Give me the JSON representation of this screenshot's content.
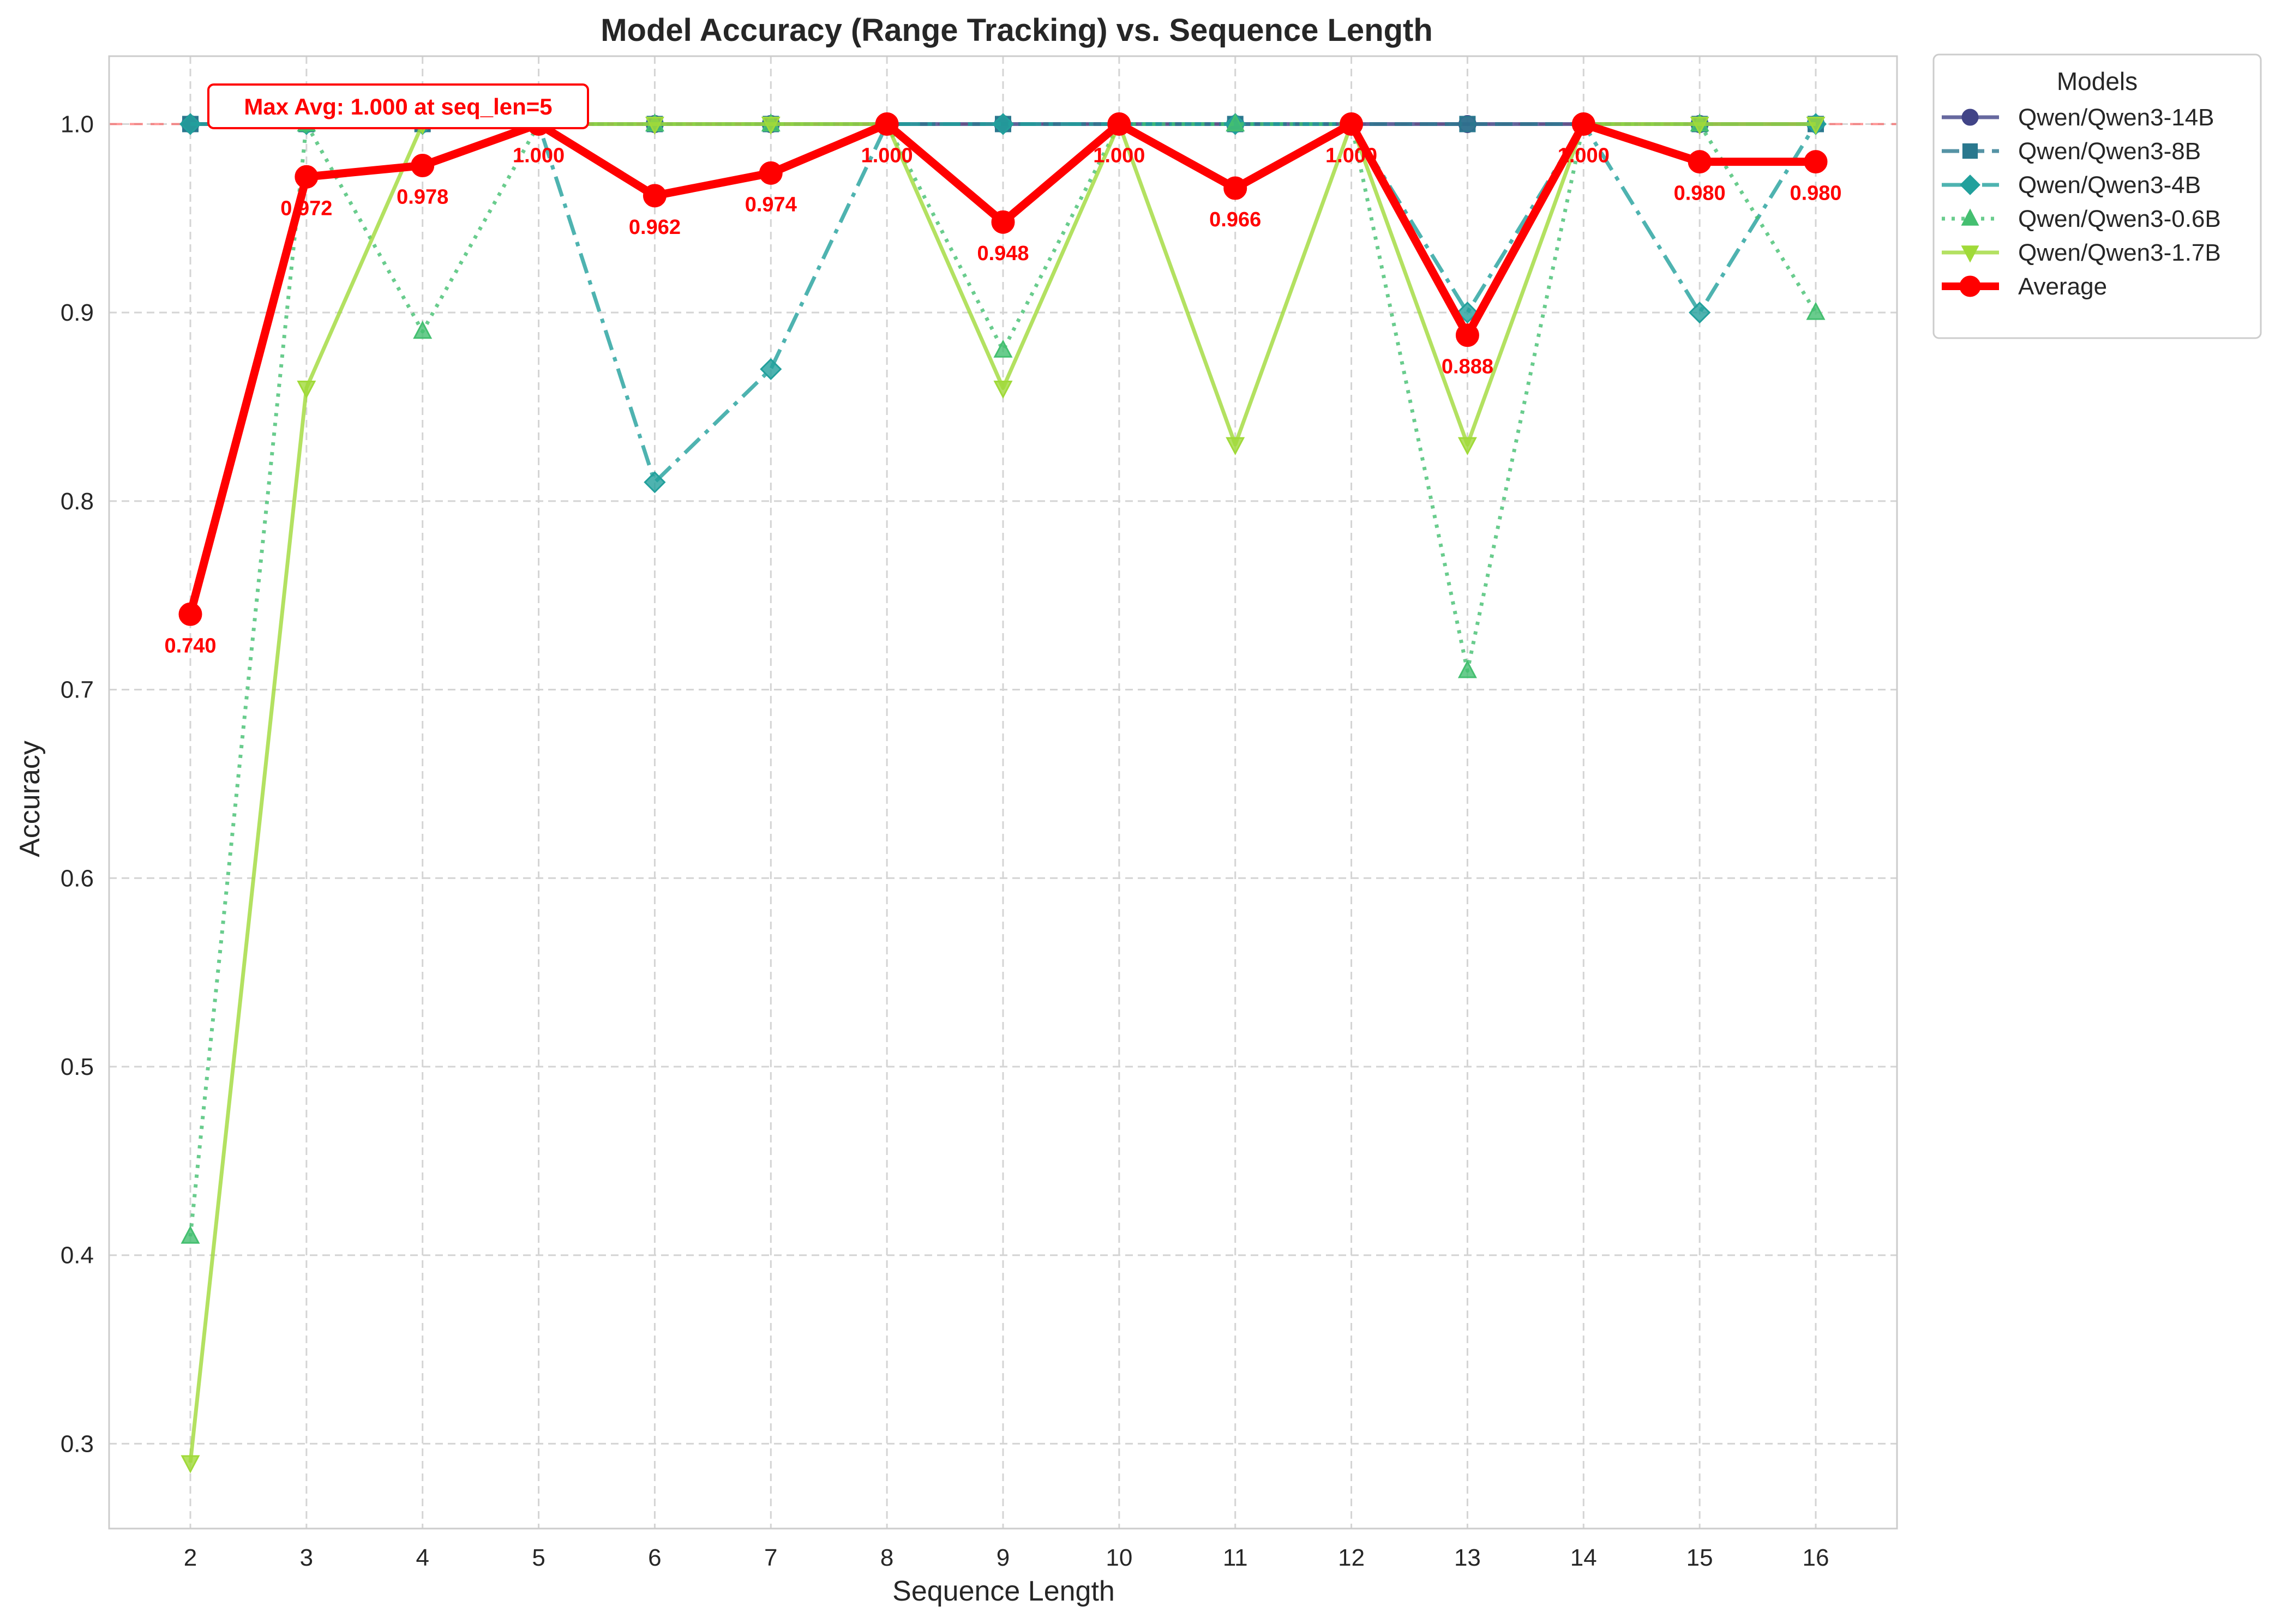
{
  "chart_data": {
    "type": "line",
    "title": "Model Accuracy (Range Tracking) vs. Sequence Length",
    "xlabel": "Sequence Length",
    "ylabel": "Accuracy",
    "x": [
      2,
      3,
      4,
      5,
      6,
      7,
      8,
      9,
      10,
      11,
      12,
      13,
      14,
      15,
      16
    ],
    "xlim": [
      1.3,
      16.7
    ],
    "ylim": [
      0.255,
      1.036
    ],
    "yticks": [
      0.3,
      0.4,
      0.5,
      0.6,
      0.7,
      0.8,
      0.9,
      1.0
    ],
    "ytick_labels": [
      "0.3",
      "0.4",
      "0.5",
      "0.6",
      "0.7",
      "0.8",
      "0.9",
      "1.0"
    ],
    "grid": true,
    "legend_title": "Models",
    "legend_position": "outside upper right",
    "reference_line": {
      "y": 1.0,
      "color": "#ff4d4d",
      "style": "dashed"
    },
    "series": [
      {
        "name": "Qwen/Qwen3-14B",
        "color": "#414487",
        "marker": "circle",
        "line_style": "solid",
        "values": [
          1.0,
          1.0,
          1.0,
          1.0,
          1.0,
          1.0,
          1.0,
          1.0,
          1.0,
          1.0,
          1.0,
          1.0,
          1.0,
          1.0,
          1.0
        ]
      },
      {
        "name": "Qwen/Qwen3-8B",
        "color": "#2a788e",
        "marker": "square",
        "line_style": "dashed",
        "values": [
          1.0,
          1.0,
          1.0,
          1.0,
          1.0,
          1.0,
          1.0,
          1.0,
          1.0,
          1.0,
          1.0,
          1.0,
          1.0,
          1.0,
          1.0
        ]
      },
      {
        "name": "Qwen/Qwen3-4B",
        "color": "#22a09c",
        "marker": "diamond",
        "line_style": "dashdot",
        "values": [
          1.0,
          1.0,
          1.0,
          1.0,
          0.81,
          0.87,
          1.0,
          1.0,
          1.0,
          1.0,
          1.0,
          0.9,
          1.0,
          0.9,
          1.0
        ]
      },
      {
        "name": "Qwen/Qwen3-0.6B",
        "color": "#44bf70",
        "marker": "triangle-up",
        "line_style": "dotted",
        "values": [
          0.41,
          1.0,
          0.89,
          1.0,
          1.0,
          1.0,
          1.0,
          0.88,
          1.0,
          1.0,
          1.0,
          0.71,
          1.0,
          1.0,
          0.9
        ]
      },
      {
        "name": "Qwen/Qwen3-1.7B",
        "color": "#a0da39",
        "marker": "triangle-down",
        "line_style": "solid",
        "values": [
          0.29,
          0.86,
          1.0,
          1.0,
          1.0,
          1.0,
          1.0,
          0.86,
          1.0,
          0.83,
          1.0,
          0.83,
          1.0,
          1.0,
          1.0
        ]
      },
      {
        "name": "Average",
        "color": "#ff0000",
        "marker": "circle",
        "line_style": "solid",
        "values": [
          0.74,
          0.972,
          0.978,
          1.0,
          0.962,
          0.974,
          1.0,
          0.948,
          1.0,
          0.966,
          1.0,
          0.888,
          1.0,
          0.98,
          0.98
        ]
      }
    ],
    "average_labels": [
      "0.740",
      "0.972",
      "0.978",
      "1.000",
      "0.962",
      "0.974",
      "1.000",
      "0.948",
      "1.000",
      "0.966",
      "1.000",
      "0.888",
      "1.000",
      "0.980",
      "0.980"
    ],
    "annotation": {
      "text": "Max Avg: 1.000 at seq_len=5",
      "x": 5,
      "y": 1.0,
      "color": "#ff0000"
    }
  }
}
